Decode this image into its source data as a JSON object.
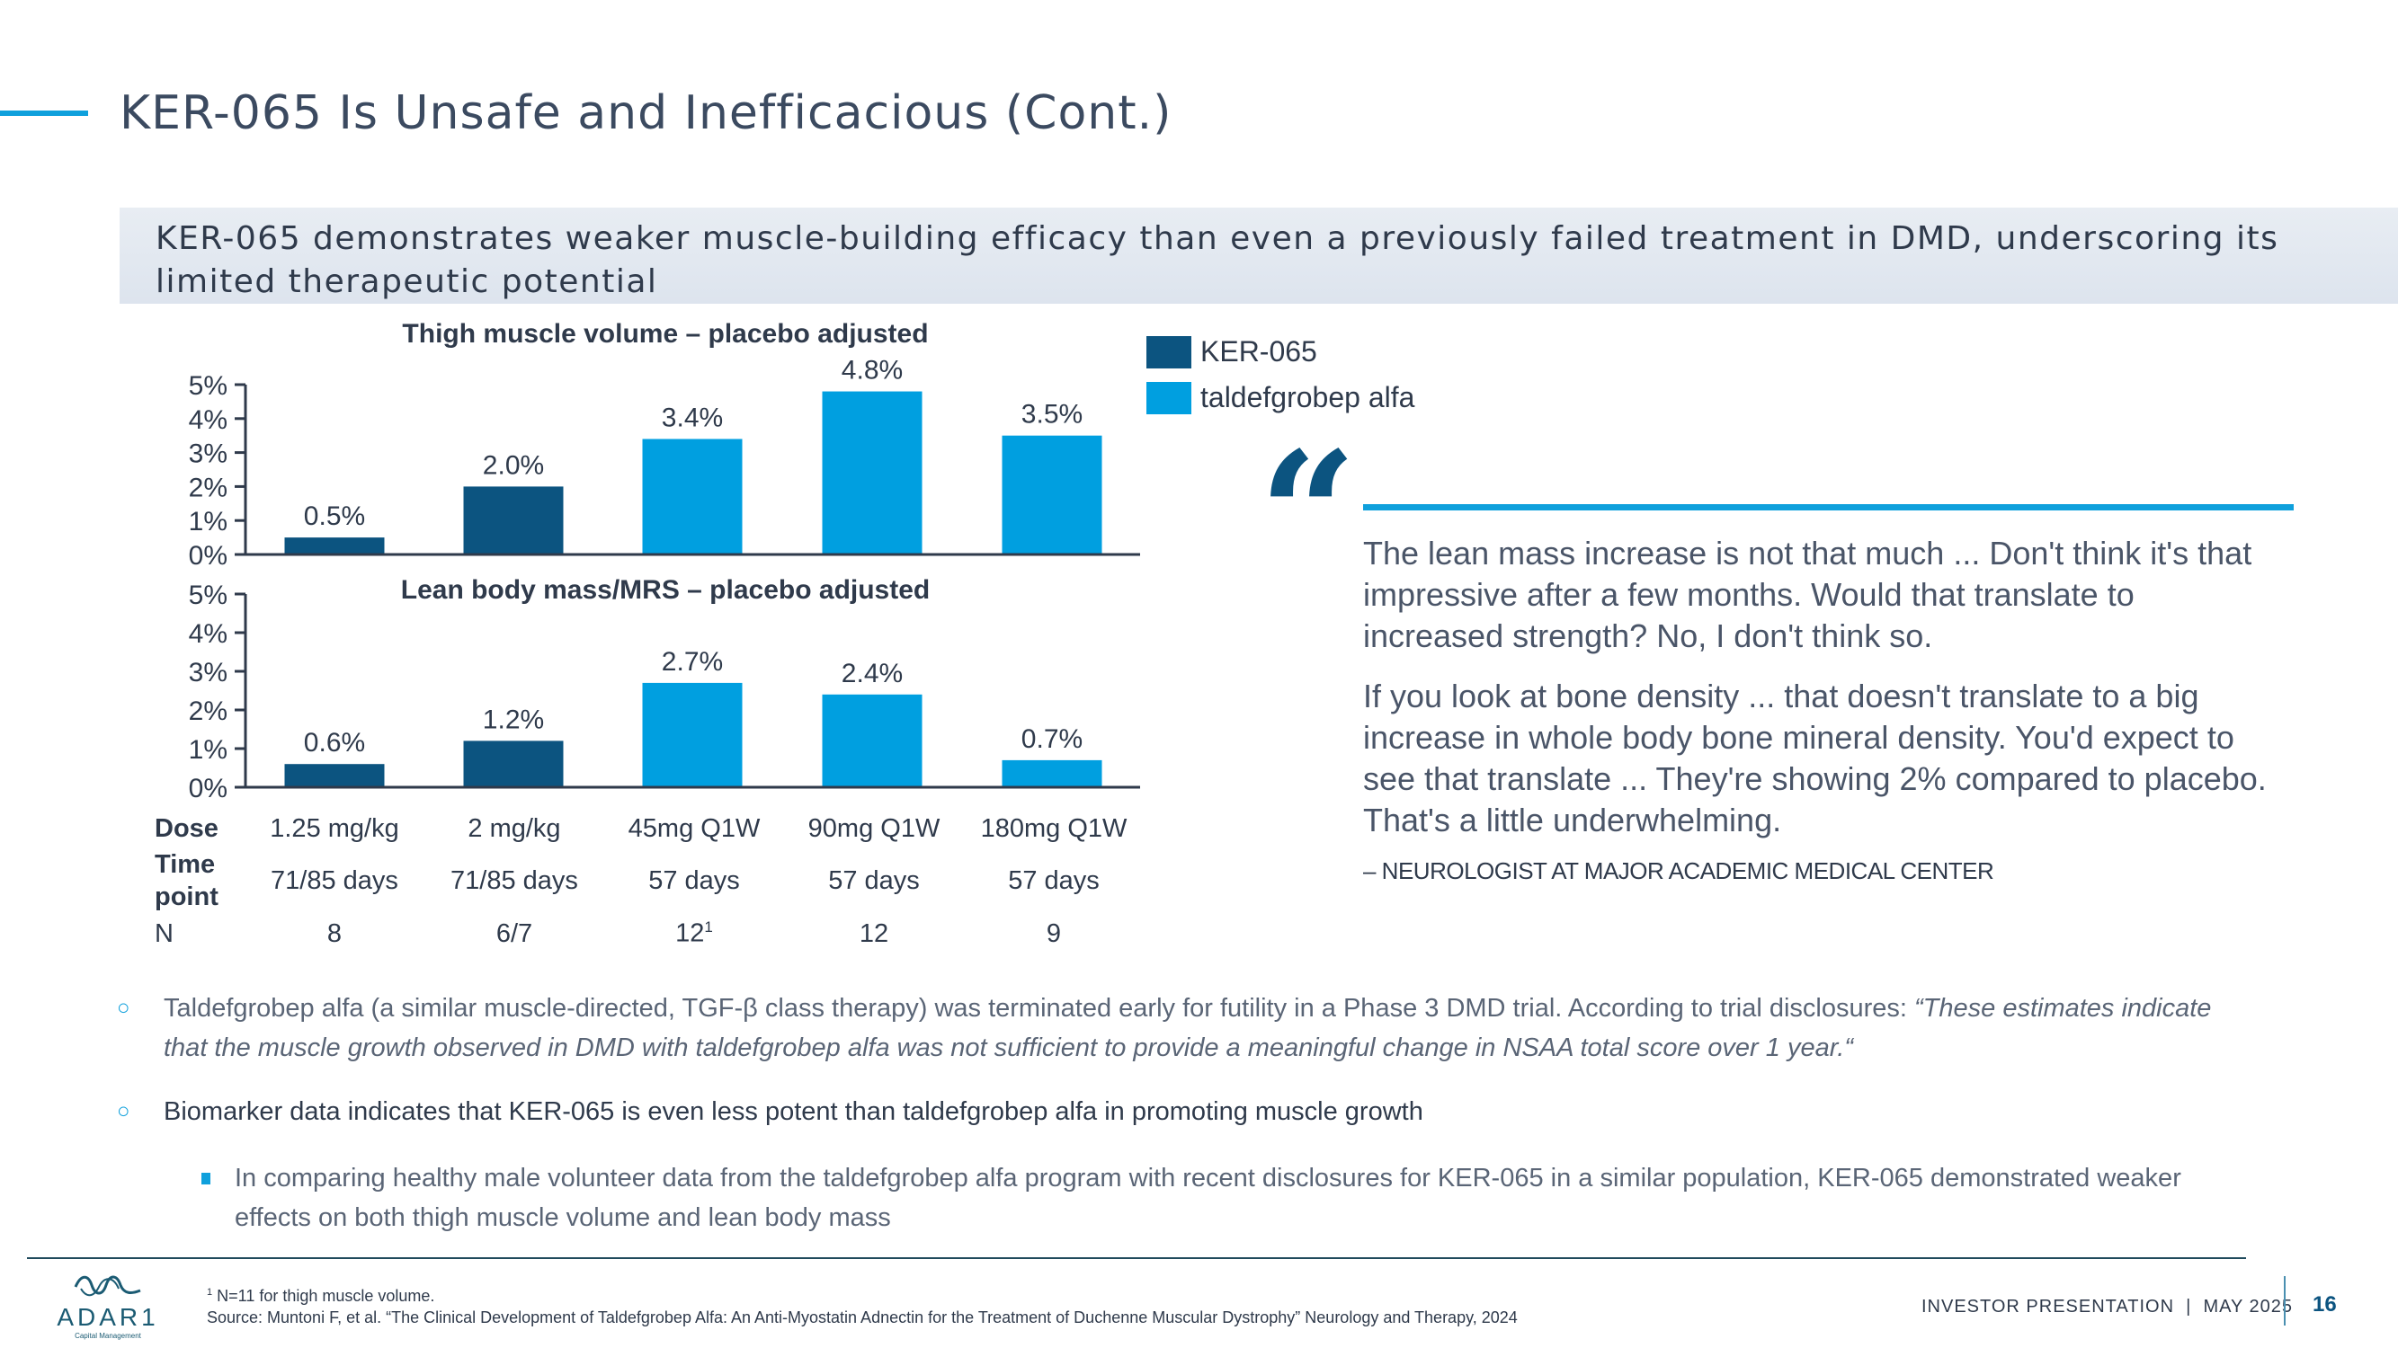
{
  "header": {
    "title": "KER-065 Is Unsafe and Inefficacious (Cont.)",
    "banner": "KER-065 demonstrates weaker muscle-building efficacy than even a previously failed treatment in DMD, underscoring its limited therapeutic potential"
  },
  "colors": {
    "ker065": "#0c5480",
    "taldefgrobep": "#009fe0",
    "accent": "#0fa0dc",
    "text": "#2f3a4b"
  },
  "legend": [
    {
      "label": "KER-065",
      "color": "#0c5480"
    },
    {
      "label": "taldefgrobep alfa",
      "color": "#009fe0"
    }
  ],
  "chart_data": [
    {
      "type": "bar",
      "title": "Thigh muscle volume – placebo adjusted",
      "categories": [
        "1.25 mg/kg",
        "2 mg/kg",
        "45mg Q1W",
        "90mg Q1W",
        "180mg Q1W"
      ],
      "series_by_bar": [
        "KER-065",
        "KER-065",
        "taldefgrobep alfa",
        "taldefgrobep alfa",
        "taldefgrobep alfa"
      ],
      "values": [
        0.5,
        2.0,
        3.4,
        4.8,
        3.5
      ],
      "data_labels": [
        "0.5%",
        "2.0%",
        "3.4%",
        "4.8%",
        "3.5%"
      ],
      "yticks": [
        "0%",
        "1%",
        "2%",
        "3%",
        "4%",
        "5%"
      ],
      "ylim": [
        0,
        5
      ],
      "ylabel": "",
      "xlabel": "",
      "grid": false,
      "legend_position": "right"
    },
    {
      "type": "bar",
      "title": "Lean body mass/MRS – placebo adjusted",
      "categories": [
        "1.25 mg/kg",
        "2 mg/kg",
        "45mg Q1W",
        "90mg Q1W",
        "180mg Q1W"
      ],
      "series_by_bar": [
        "KER-065",
        "KER-065",
        "taldefgrobep alfa",
        "taldefgrobep alfa",
        "taldefgrobep alfa"
      ],
      "values": [
        0.6,
        1.2,
        2.7,
        2.4,
        0.7
      ],
      "data_labels": [
        "0.6%",
        "1.2%",
        "2.7%",
        "2.4%",
        "0.7%"
      ],
      "yticks": [
        "0%",
        "1%",
        "2%",
        "3%",
        "4%",
        "5%"
      ],
      "ylim": [
        0,
        5
      ],
      "ylabel": "",
      "xlabel": "",
      "grid": false,
      "legend_position": "right"
    }
  ],
  "table": {
    "rows": [
      {
        "label": "Dose",
        "cells": [
          "1.25 mg/kg",
          "2 mg/kg",
          "45mg Q1W",
          "90mg Q1W",
          "180mg Q1W"
        ]
      },
      {
        "label": "Time point",
        "cells": [
          "71/85 days",
          "71/85 days",
          "57 days",
          "57 days",
          "57 days"
        ]
      },
      {
        "label": "N",
        "cells": [
          "8",
          "6/7",
          "12",
          "12",
          "9"
        ],
        "superscripts": [
          "",
          "",
          "1",
          "",
          ""
        ]
      }
    ]
  },
  "quote": {
    "paragraphs": [
      "The lean mass increase is not that much ... Don't think it's that impressive after a few months. Would that translate to increased strength? No, I don't think so.",
      "If you look at bone density ... that doesn't translate to a big increase in whole body bone mineral density. You'd expect to see that translate ... They're showing 2% compared to placebo. That's a little underwhelming."
    ],
    "attribution": "– NEUROLOGIST AT MAJOR ACADEMIC MEDICAL CENTER"
  },
  "bullets": [
    {
      "text": "Taldefgrobep alfa (a similar muscle-directed, TGF-β class therapy) was terminated early for futility in a Phase 3 DMD trial. According to trial disclosures: ",
      "italic": "“These estimates indicate that the muscle growth observed in DMD with taldefgrobep alfa was not sufficient to provide a meaningful change in NSAA total score over 1 year.“"
    },
    {
      "text": "Biomarker data indicates that KER-065 is even less potent than taldefgrobep alfa in promoting muscle growth"
    },
    {
      "text": "In comparing healthy male volunteer data from the taldefgrobep alfa program with recent disclosures for KER-065 in a similar population, KER-065 demonstrated weaker effects on both thigh muscle volume and lean body mass"
    }
  ],
  "footer": {
    "logo_name": "ADAR1",
    "logo_sub": "Capital Management",
    "footnote_mark": "1",
    "footnote": "N=11 for thigh muscle volume.",
    "source": "Source: Muntoni F, et al. “The Clinical Development of Taldefgrobep Alfa: An Anti-Myostatin Adnectin for the Treatment of Duchenne Muscular Dystrophy” Neurology and Therapy, 2024",
    "presentation": "INVESTOR PRESENTATION  |  MAY 2025",
    "page_number": "16"
  }
}
